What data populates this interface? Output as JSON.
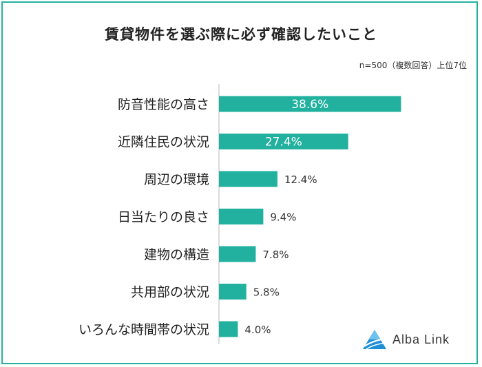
{
  "chart_data": {
    "type": "bar",
    "orientation": "horizontal",
    "title": "賃貸物件を選ぶ際に必ず確認したいこと",
    "note": "n=500（複数回答）上位7位",
    "categories": [
      "防音性能の高さ",
      "近隣住民の状況",
      "周辺の環境",
      "日当たりの良さ",
      "建物の構造",
      "共用部の状況",
      "いろんな時間帯の状況"
    ],
    "values": [
      38.6,
      27.4,
      12.4,
      9.4,
      7.8,
      5.8,
      4.0
    ],
    "labels": [
      "38.6%",
      "27.4%",
      "12.4%",
      "9.4%",
      "7.8%",
      "5.8%",
      "4.0%"
    ],
    "xlim": [
      0,
      50
    ],
    "grid": false,
    "bar_color": "#23b19f",
    "axis_color": "#cfcfcf"
  },
  "logo": {
    "text": "Alba Link",
    "icon": "alba-link-logo-icon",
    "color": "#1e8fd6"
  }
}
